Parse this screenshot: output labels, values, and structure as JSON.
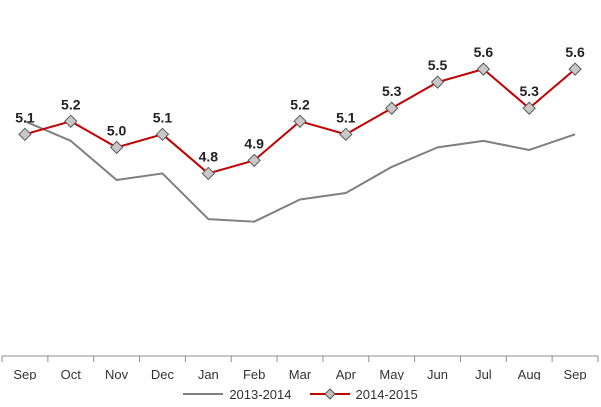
{
  "chart_data": {
    "type": "line",
    "title": "",
    "xlabel": "",
    "ylabel": "",
    "categories": [
      "Sep",
      "Oct",
      "Nov",
      "Dec",
      "Jan",
      "Feb",
      "Mar",
      "Apr",
      "May",
      "Jun",
      "Jul",
      "Aug",
      "Sep"
    ],
    "ylim": [
      3.4,
      5.9
    ],
    "grid": false,
    "legend_position": "bottom",
    "series": [
      {
        "name": "2013-2014",
        "color": "#7f7f7f",
        "marker": "none",
        "values": [
          5.2,
          5.05,
          4.75,
          4.8,
          4.45,
          4.43,
          4.6,
          4.65,
          4.85,
          5.0,
          5.05,
          4.98,
          5.1
        ]
      },
      {
        "name": "2014-2015",
        "color": "#c00000",
        "marker": "diamond",
        "data_labels": true,
        "values": [
          5.1,
          5.2,
          5.0,
          5.1,
          4.8,
          4.9,
          5.2,
          5.1,
          5.3,
          5.5,
          5.6,
          5.3,
          5.6
        ]
      }
    ]
  }
}
